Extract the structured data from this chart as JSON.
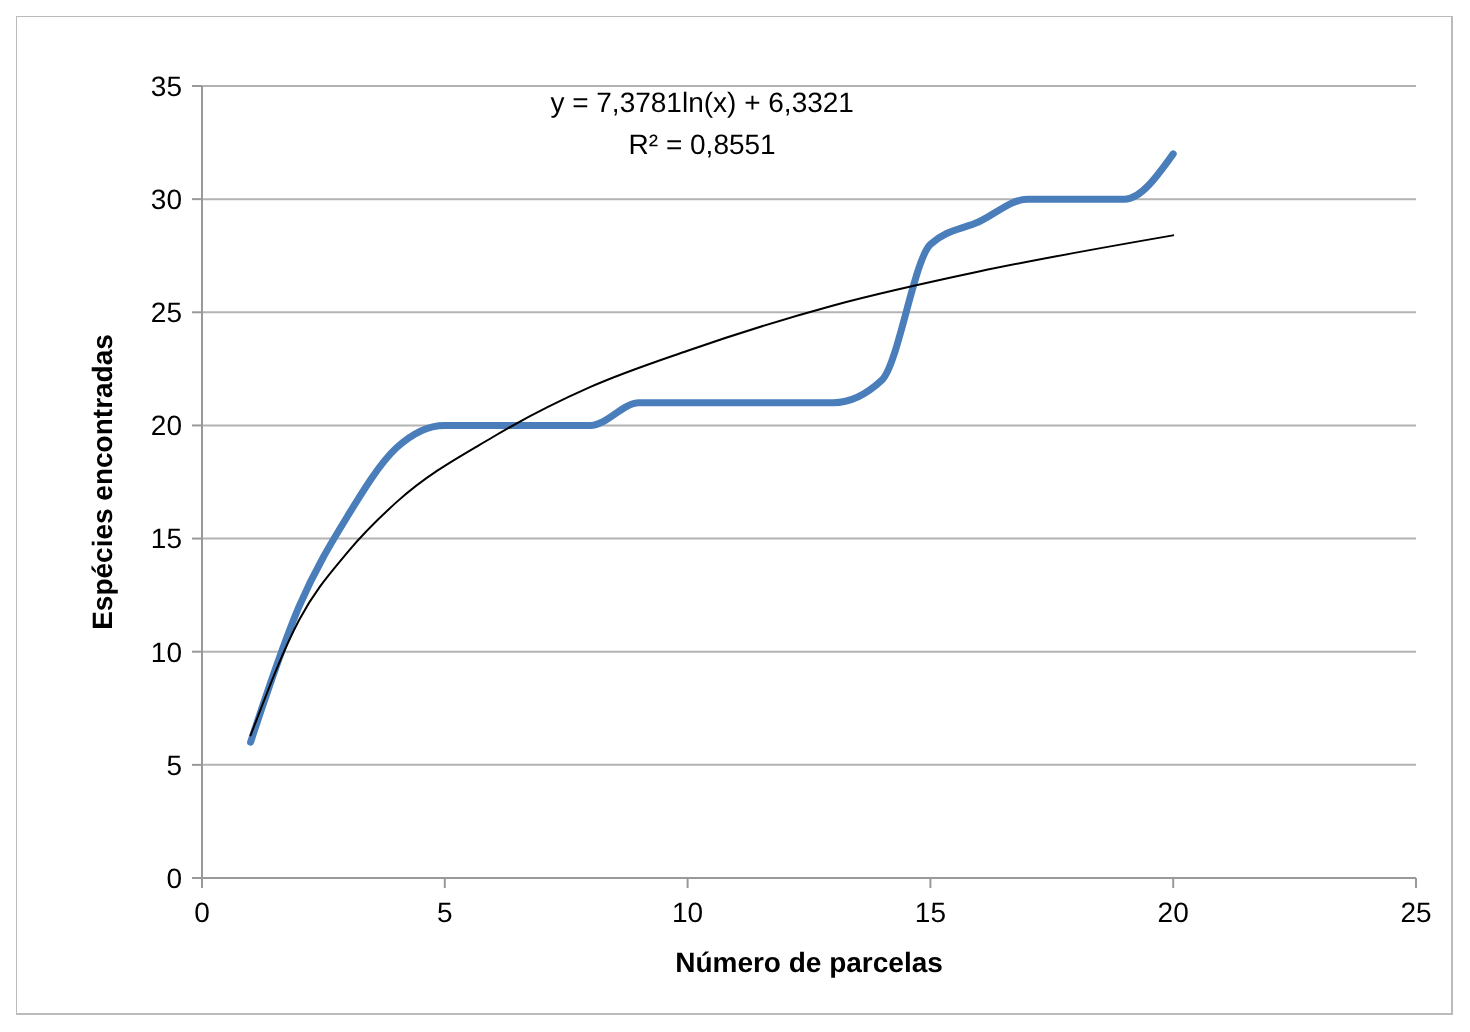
{
  "chart_data": {
    "type": "line",
    "xlabel": "Número de parcelas",
    "ylabel": "Espécies encontradas",
    "x": [
      1,
      2,
      3,
      4,
      5,
      6,
      7,
      8,
      9,
      10,
      11,
      12,
      13,
      14,
      15,
      16,
      17,
      18,
      19,
      20
    ],
    "series": [
      {
        "color": "#4a7ebb",
        "values": [
          6,
          12,
          16,
          19,
          20,
          20,
          20,
          20,
          21,
          21,
          21,
          21,
          21,
          22,
          28,
          29,
          30,
          30,
          30,
          32
        ]
      },
      {
        "color": "#000000",
        "x": [
          1,
          2,
          3,
          4,
          6,
          8,
          10,
          13,
          16,
          20
        ],
        "values": [
          6.3,
          11.4,
          14.4,
          16.6,
          19.5,
          21.7,
          23.3,
          25.3,
          26.8,
          28.4
        ]
      }
    ],
    "annotations": [
      "y = 7,3781ln(x) + 6,3321",
      "R² = 0,8551"
    ],
    "xlim": [
      0,
      25
    ],
    "xticks": [
      0,
      5,
      10,
      15,
      20,
      25
    ],
    "ylim": [
      0,
      35
    ],
    "yticks": [
      0,
      5,
      10,
      15,
      20,
      25,
      30,
      35
    ],
    "grid": "y",
    "marker": "none",
    "line_style": "solid"
  }
}
